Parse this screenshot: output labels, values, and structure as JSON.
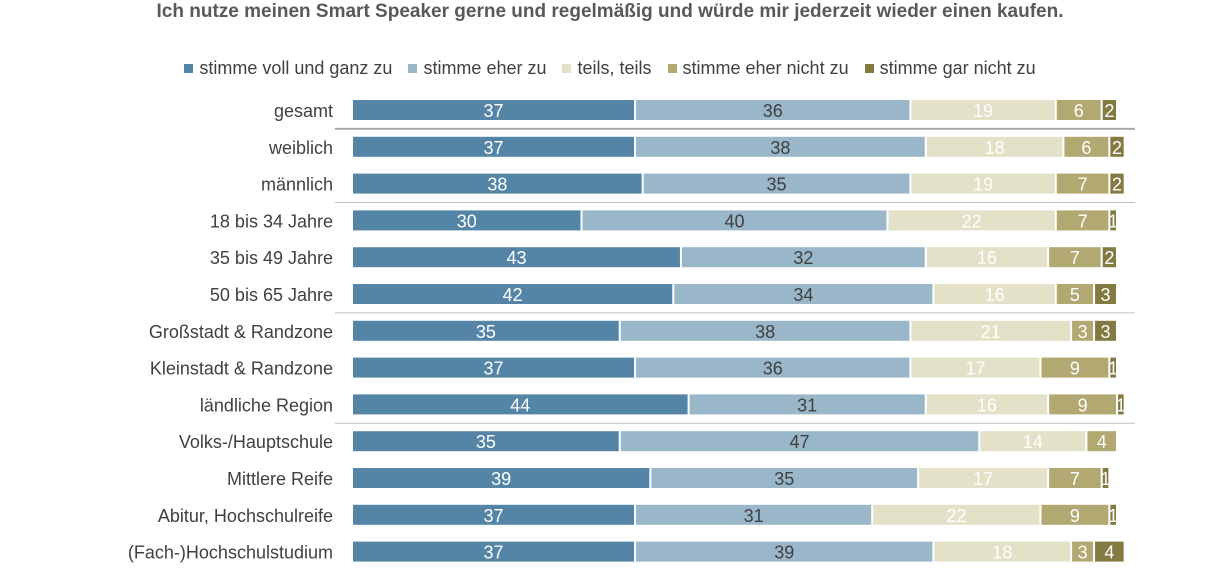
{
  "chart_data": {
    "type": "bar",
    "orientation": "horizontal",
    "stacked": true,
    "title": "Ich nutze meinen Smart Speaker gerne und regelmäßig und würde mir jederzeit wieder einen kaufen.",
    "legend_position": "top",
    "categories": [
      "gesamt",
      "weiblich",
      "männlich",
      "18 bis 34 Jahre",
      "35 bis 49 Jahre",
      "50 bis 65 Jahre",
      "Großstadt & Randzone",
      "Kleinstadt & Randzone",
      "ländliche Region",
      "Volks-/Hauptschule",
      "Mittlere Reife",
      "Abitur, Hochschulreife",
      "(Fach-)Hochschulstudium"
    ],
    "series": [
      {
        "name": "stimme voll und ganz zu",
        "color": "#5485a6",
        "label_color": "#ffffff",
        "values": [
          37,
          37,
          38,
          30,
          43,
          42,
          35,
          37,
          44,
          35,
          39,
          37,
          37
        ]
      },
      {
        "name": "stimme eher zu",
        "color": "#9ab7c9",
        "label_color": "#404040",
        "values": [
          36,
          38,
          35,
          40,
          32,
          34,
          38,
          36,
          31,
          47,
          35,
          31,
          39
        ]
      },
      {
        "name": "teils, teils",
        "color": "#e3e1c8",
        "label_color": "#ffffff",
        "values": [
          19,
          18,
          19,
          22,
          16,
          16,
          21,
          17,
          16,
          14,
          17,
          22,
          18
        ]
      },
      {
        "name": "stimme eher nicht zu",
        "color": "#b1a872",
        "label_color": "#ffffff",
        "values": [
          6,
          6,
          7,
          7,
          7,
          5,
          3,
          9,
          9,
          4,
          7,
          9,
          3
        ]
      },
      {
        "name": "stimme gar nicht zu",
        "color": "#827a40",
        "label_color": "#ffffff",
        "values": [
          2,
          2,
          2,
          1,
          2,
          3,
          3,
          1,
          1,
          0,
          1,
          1,
          4
        ]
      }
    ],
    "group_separators_after": [
      "gesamt",
      "männlich",
      "50 bis 65 Jahre",
      "ländliche Region"
    ],
    "grid": false
  }
}
